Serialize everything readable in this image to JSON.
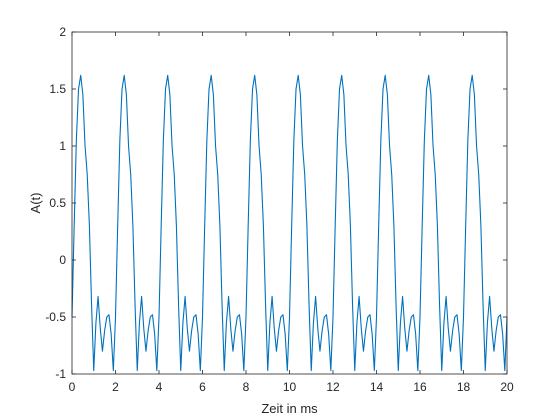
{
  "chart_data": {
    "type": "line",
    "title": "",
    "xlabel": "Zeit in ms",
    "ylabel": "A(t)",
    "xlim": [
      0,
      20
    ],
    "ylim": [
      -1,
      2
    ],
    "xticks": [
      0,
      2,
      4,
      6,
      8,
      10,
      12,
      14,
      16,
      18,
      20
    ],
    "yticks": [
      -1,
      -0.5,
      0,
      0.5,
      1,
      1.5,
      2
    ],
    "xtick_labels": [
      "0",
      "2",
      "4",
      "6",
      "8",
      "10",
      "12",
      "14",
      "16",
      "18",
      "20"
    ],
    "ytick_labels": [
      "-1",
      "-0.5",
      "0",
      "0.5",
      "1",
      "1.5",
      "2"
    ],
    "grid": false,
    "box": true,
    "line_color": "#0072BD",
    "axis_color": "#262626",
    "series": [
      {
        "name": "",
        "period_ms": 2,
        "x": [
          0,
          0.1,
          0.2,
          0.3,
          0.4,
          0.5,
          0.6,
          0.7,
          0.8,
          0.9,
          1.0,
          1.1,
          1.2,
          1.3,
          1.4,
          1.5,
          1.6,
          1.7,
          1.8,
          1.9,
          2.0,
          2.1,
          2.2,
          2.3,
          2.4,
          2.5,
          2.6,
          2.7,
          2.8,
          2.9,
          3.0,
          3.1,
          3.2,
          3.3,
          3.4,
          3.5,
          3.6,
          3.7,
          3.8,
          3.9,
          4.0,
          4.1,
          4.2,
          4.3,
          4.4,
          4.5,
          4.6,
          4.7,
          4.8,
          4.9,
          5.0,
          5.1,
          5.2,
          5.3,
          5.4,
          5.5,
          5.6,
          5.7,
          5.8,
          5.9,
          6.0,
          6.1,
          6.2,
          6.3,
          6.4,
          6.5,
          6.6,
          6.7,
          6.8,
          6.9,
          7.0,
          7.1,
          7.2,
          7.3,
          7.4,
          7.5,
          7.6,
          7.7,
          7.8,
          7.9,
          8.0,
          8.1,
          8.2,
          8.3,
          8.4,
          8.5,
          8.6,
          8.7,
          8.8,
          8.9,
          9.0,
          9.1,
          9.2,
          9.3,
          9.4,
          9.5,
          9.6,
          9.7,
          9.8,
          9.9,
          10.0,
          10.1,
          10.2,
          10.3,
          10.4,
          10.5,
          10.6,
          10.7,
          10.8,
          10.9,
          11.0,
          11.1,
          11.2,
          11.3,
          11.4,
          11.5,
          11.6,
          11.7,
          11.8,
          11.9,
          12.0,
          12.1,
          12.2,
          12.3,
          12.4,
          12.5,
          12.6,
          12.7,
          12.8,
          12.9,
          13.0,
          13.1,
          13.2,
          13.3,
          13.4,
          13.5,
          13.6,
          13.7,
          13.8,
          13.9,
          14.0,
          14.1,
          14.2,
          14.3,
          14.4,
          14.5,
          14.6,
          14.7,
          14.8,
          14.9,
          15.0,
          15.1,
          15.2,
          15.3,
          15.4,
          15.5,
          15.6,
          15.7,
          15.8,
          15.9,
          16.0,
          16.1,
          16.2,
          16.3,
          16.4,
          16.5,
          16.6,
          16.7,
          16.8,
          16.9,
          17.0,
          17.1,
          17.2,
          17.3,
          17.4,
          17.5,
          17.6,
          17.7,
          17.8,
          17.9,
          18.0,
          18.1,
          18.2,
          18.3,
          18.4,
          18.5,
          18.6,
          18.7,
          18.8,
          18.9,
          19.0,
          19.1,
          19.2,
          19.3,
          19.4,
          19.5,
          19.6,
          19.7,
          19.8,
          19.9,
          20.0
        ],
        "one_period_y": [
          -0.5,
          0.3,
          1.05,
          1.5,
          1.62,
          1.45,
          1.0,
          0.75,
          0.3,
          -0.4,
          -0.97,
          -0.55,
          -0.32,
          -0.6,
          -0.8,
          -0.62,
          -0.5,
          -0.48,
          -0.65,
          -0.97
        ]
      }
    ]
  }
}
